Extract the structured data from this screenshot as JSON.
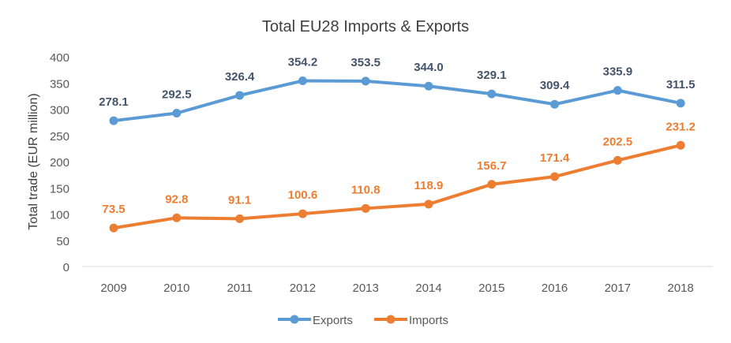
{
  "chart_data": {
    "type": "line",
    "title": "Total EU28 Imports & Exports",
    "xlabel": "",
    "ylabel": "Total trade (EUR million)",
    "ylim": [
      0,
      400
    ],
    "yticks": [
      0,
      50,
      100,
      150,
      200,
      250,
      300,
      350,
      400
    ],
    "categories": [
      "2009",
      "2010",
      "2011",
      "2012",
      "2013",
      "2014",
      "2015",
      "2016",
      "2017",
      "2018"
    ],
    "legend_position": "bottom",
    "grid": false,
    "series": [
      {
        "name": "Exports",
        "color": "#5b9bd5",
        "label_color": "#44546a",
        "values": [
          278.1,
          292.5,
          326.4,
          354.2,
          353.5,
          344.0,
          329.1,
          309.4,
          335.9,
          311.5
        ],
        "labels": [
          "278.1",
          "292.5",
          "326.4",
          "354.2",
          "353.5",
          "344.0",
          "329.1",
          "309.4",
          "335.9",
          "311.5"
        ]
      },
      {
        "name": "Imports",
        "color": "#ed7d31",
        "label_color": "#ed7d31",
        "values": [
          73.5,
          92.8,
          91.1,
          100.6,
          110.8,
          118.9,
          156.7,
          171.4,
          202.5,
          231.2
        ],
        "labels": [
          "73.5",
          "92.8",
          "91.1",
          "100.6",
          "110.8",
          "118.9",
          "156.7",
          "171.4",
          "202.5",
          "231.2"
        ]
      }
    ]
  }
}
